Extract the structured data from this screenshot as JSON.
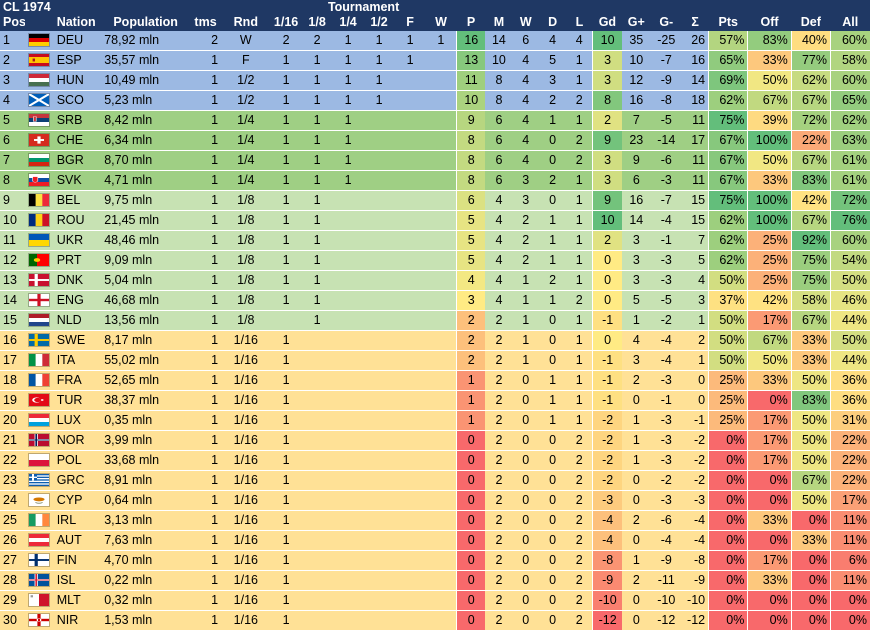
{
  "header": {
    "title": "CL 1974",
    "group_label": "Tournament",
    "columns": [
      "Pos",
      "Nation",
      "Population",
      "tms",
      "Rnd",
      "1/16",
      "1/8",
      "1/4",
      "1/2",
      "F",
      "W",
      "P",
      "M",
      "W",
      "D",
      "L",
      "Gd",
      "G+",
      "G-",
      "Σ",
      "Pts",
      "Off",
      "Def",
      "All"
    ]
  },
  "colors": {
    "header_bg": "#1f3864",
    "tier_blue": "#9cb9e3",
    "tier_green_dark": "#9fcf84",
    "tier_green_light": "#c7e2b3",
    "tier_yellow": "#ffe196",
    "scale_green": "#63be7b",
    "scale_yellow": "#ffeb84",
    "scale_red": "#f8696b"
  },
  "rows": [
    {
      "pos": "1",
      "flag": "de",
      "nation": "DEU",
      "pop": "78,92 mln",
      "tms": "2",
      "rnd": "W",
      "r16": "2",
      "r8": "2",
      "r4": "1",
      "r2": "1",
      "f": "1",
      "w": "1",
      "p": "16",
      "m": "14",
      "wn": "6",
      "d": "4",
      "l": "4",
      "gd": "10",
      "gp": "35",
      "gm": "-25",
      "s": "26",
      "pts": "57%",
      "off": "83%",
      "def": "40%",
      "all": "60%",
      "tier": "blue"
    },
    {
      "pos": "2",
      "flag": "es",
      "nation": "ESP",
      "pop": "35,57 mln",
      "tms": "1",
      "rnd": "F",
      "r16": "1",
      "r8": "1",
      "r4": "1",
      "r2": "1",
      "f": "1",
      "w": "",
      "p": "13",
      "m": "10",
      "wn": "4",
      "d": "5",
      "l": "1",
      "gd": "3",
      "gp": "10",
      "gm": "-7",
      "s": "16",
      "pts": "65%",
      "off": "33%",
      "def": "77%",
      "all": "58%",
      "tier": "blue"
    },
    {
      "pos": "3",
      "flag": "hu",
      "nation": "HUN",
      "pop": "10,49 mln",
      "tms": "1",
      "rnd": "1/2",
      "r16": "1",
      "r8": "1",
      "r4": "1",
      "r2": "1",
      "f": "",
      "w": "",
      "p": "11",
      "m": "8",
      "wn": "4",
      "d": "3",
      "l": "1",
      "gd": "3",
      "gp": "12",
      "gm": "-9",
      "s": "14",
      "pts": "69%",
      "off": "50%",
      "def": "62%",
      "all": "60%",
      "tier": "blue"
    },
    {
      "pos": "4",
      "flag": "sco",
      "nation": "SCO",
      "pop": "5,23 mln",
      "tms": "1",
      "rnd": "1/2",
      "r16": "1",
      "r8": "1",
      "r4": "1",
      "r2": "1",
      "f": "",
      "w": "",
      "p": "10",
      "m": "8",
      "wn": "4",
      "d": "2",
      "l": "2",
      "gd": "8",
      "gp": "16",
      "gm": "-8",
      "s": "18",
      "pts": "62%",
      "off": "67%",
      "def": "67%",
      "all": "65%",
      "tier": "blue"
    },
    {
      "pos": "5",
      "flag": "rs",
      "nation": "SRB",
      "pop": "8,42 mln",
      "tms": "1",
      "rnd": "1/4",
      "r16": "1",
      "r8": "1",
      "r4": "1",
      "r2": "",
      "f": "",
      "w": "",
      "p": "9",
      "m": "6",
      "wn": "4",
      "d": "1",
      "l": "1",
      "gd": "2",
      "gp": "7",
      "gm": "-5",
      "s": "11",
      "pts": "75%",
      "off": "39%",
      "def": "72%",
      "all": "62%",
      "tier": "green_dark"
    },
    {
      "pos": "6",
      "flag": "ch",
      "nation": "CHE",
      "pop": "6,34 mln",
      "tms": "1",
      "rnd": "1/4",
      "r16": "1",
      "r8": "1",
      "r4": "1",
      "r2": "",
      "f": "",
      "w": "",
      "p": "8",
      "m": "6",
      "wn": "4",
      "d": "0",
      "l": "2",
      "gd": "9",
      "gp": "23",
      "gm": "-14",
      "s": "17",
      "pts": "67%",
      "off": "100%",
      "def": "22%",
      "all": "63%",
      "tier": "green_dark"
    },
    {
      "pos": "7",
      "flag": "bg",
      "nation": "BGR",
      "pop": "8,70 mln",
      "tms": "1",
      "rnd": "1/4",
      "r16": "1",
      "r8": "1",
      "r4": "1",
      "r2": "",
      "f": "",
      "w": "",
      "p": "8",
      "m": "6",
      "wn": "4",
      "d": "0",
      "l": "2",
      "gd": "3",
      "gp": "9",
      "gm": "-6",
      "s": "11",
      "pts": "67%",
      "off": "50%",
      "def": "67%",
      "all": "61%",
      "tier": "green_dark"
    },
    {
      "pos": "8",
      "flag": "sk",
      "nation": "SVK",
      "pop": "4,71 mln",
      "tms": "1",
      "rnd": "1/4",
      "r16": "1",
      "r8": "1",
      "r4": "1",
      "r2": "",
      "f": "",
      "w": "",
      "p": "8",
      "m": "6",
      "wn": "3",
      "d": "2",
      "l": "1",
      "gd": "3",
      "gp": "6",
      "gm": "-3",
      "s": "11",
      "pts": "67%",
      "off": "33%",
      "def": "83%",
      "all": "61%",
      "tier": "green_dark"
    },
    {
      "pos": "9",
      "flag": "be",
      "nation": "BEL",
      "pop": "9,75 mln",
      "tms": "1",
      "rnd": "1/8",
      "r16": "1",
      "r8": "1",
      "r4": "",
      "r2": "",
      "f": "",
      "w": "",
      "p": "6",
      "m": "4",
      "wn": "3",
      "d": "0",
      "l": "1",
      "gd": "9",
      "gp": "16",
      "gm": "-7",
      "s": "15",
      "pts": "75%",
      "off": "100%",
      "def": "42%",
      "all": "72%",
      "tier": "green_light"
    },
    {
      "pos": "10",
      "flag": "ro",
      "nation": "ROU",
      "pop": "21,45 mln",
      "tms": "1",
      "rnd": "1/8",
      "r16": "1",
      "r8": "1",
      "r4": "",
      "r2": "",
      "f": "",
      "w": "",
      "p": "5",
      "m": "4",
      "wn": "2",
      "d": "1",
      "l": "1",
      "gd": "10",
      "gp": "14",
      "gm": "-4",
      "s": "15",
      "pts": "62%",
      "off": "100%",
      "def": "67%",
      "all": "76%",
      "tier": "green_light"
    },
    {
      "pos": "11",
      "flag": "ua",
      "nation": "UKR",
      "pop": "48,46 mln",
      "tms": "1",
      "rnd": "1/8",
      "r16": "1",
      "r8": "1",
      "r4": "",
      "r2": "",
      "f": "",
      "w": "",
      "p": "5",
      "m": "4",
      "wn": "2",
      "d": "1",
      "l": "1",
      "gd": "2",
      "gp": "3",
      "gm": "-1",
      "s": "7",
      "pts": "62%",
      "off": "25%",
      "def": "92%",
      "all": "60%",
      "tier": "green_light"
    },
    {
      "pos": "12",
      "flag": "pt",
      "nation": "PRT",
      "pop": "9,09 mln",
      "tms": "1",
      "rnd": "1/8",
      "r16": "1",
      "r8": "1",
      "r4": "",
      "r2": "",
      "f": "",
      "w": "",
      "p": "5",
      "m": "4",
      "wn": "2",
      "d": "1",
      "l": "1",
      "gd": "0",
      "gp": "3",
      "gm": "-3",
      "s": "5",
      "pts": "62%",
      "off": "25%",
      "def": "75%",
      "all": "54%",
      "tier": "green_light"
    },
    {
      "pos": "13",
      "flag": "dk",
      "nation": "DNK",
      "pop": "5,04 mln",
      "tms": "1",
      "rnd": "1/8",
      "r16": "1",
      "r8": "1",
      "r4": "",
      "r2": "",
      "f": "",
      "w": "",
      "p": "4",
      "m": "4",
      "wn": "1",
      "d": "2",
      "l": "1",
      "gd": "0",
      "gp": "3",
      "gm": "-3",
      "s": "4",
      "pts": "50%",
      "off": "25%",
      "def": "75%",
      "all": "50%",
      "tier": "green_light"
    },
    {
      "pos": "14",
      "flag": "eng",
      "nation": "ENG",
      "pop": "46,68 mln",
      "tms": "1",
      "rnd": "1/8",
      "r16": "1",
      "r8": "1",
      "r4": "",
      "r2": "",
      "f": "",
      "w": "",
      "p": "3",
      "m": "4",
      "wn": "1",
      "d": "1",
      "l": "2",
      "gd": "0",
      "gp": "5",
      "gm": "-5",
      "s": "3",
      "pts": "37%",
      "off": "42%",
      "def": "58%",
      "all": "46%",
      "tier": "green_light"
    },
    {
      "pos": "15",
      "flag": "nl",
      "nation": "NLD",
      "pop": "13,56 mln",
      "tms": "1",
      "rnd": "1/8",
      "r16": "",
      "r8": "1",
      "r4": "",
      "r2": "",
      "f": "",
      "w": "",
      "p": "2",
      "m": "2",
      "wn": "1",
      "d": "0",
      "l": "1",
      "gd": "-1",
      "gp": "1",
      "gm": "-2",
      "s": "1",
      "pts": "50%",
      "off": "17%",
      "def": "67%",
      "all": "44%",
      "tier": "green_light"
    },
    {
      "pos": "16",
      "flag": "se",
      "nation": "SWE",
      "pop": "8,17 mln",
      "tms": "1",
      "rnd": "1/16",
      "r16": "1",
      "r8": "",
      "r4": "",
      "r2": "",
      "f": "",
      "w": "",
      "p": "2",
      "m": "2",
      "wn": "1",
      "d": "0",
      "l": "1",
      "gd": "0",
      "gp": "4",
      "gm": "-4",
      "s": "2",
      "pts": "50%",
      "off": "67%",
      "def": "33%",
      "all": "50%",
      "tier": "yellow"
    },
    {
      "pos": "17",
      "flag": "it",
      "nation": "ITA",
      "pop": "55,02 mln",
      "tms": "1",
      "rnd": "1/16",
      "r16": "1",
      "r8": "",
      "r4": "",
      "r2": "",
      "f": "",
      "w": "",
      "p": "2",
      "m": "2",
      "wn": "1",
      "d": "0",
      "l": "1",
      "gd": "-1",
      "gp": "3",
      "gm": "-4",
      "s": "1",
      "pts": "50%",
      "off": "50%",
      "def": "33%",
      "all": "44%",
      "tier": "yellow"
    },
    {
      "pos": "18",
      "flag": "fr",
      "nation": "FRA",
      "pop": "52,65 mln",
      "tms": "1",
      "rnd": "1/16",
      "r16": "1",
      "r8": "",
      "r4": "",
      "r2": "",
      "f": "",
      "w": "",
      "p": "1",
      "m": "2",
      "wn": "0",
      "d": "1",
      "l": "1",
      "gd": "-1",
      "gp": "2",
      "gm": "-3",
      "s": "0",
      "pts": "25%",
      "off": "33%",
      "def": "50%",
      "all": "36%",
      "tier": "yellow"
    },
    {
      "pos": "19",
      "flag": "tr",
      "nation": "TUR",
      "pop": "38,37 mln",
      "tms": "1",
      "rnd": "1/16",
      "r16": "1",
      "r8": "",
      "r4": "",
      "r2": "",
      "f": "",
      "w": "",
      "p": "1",
      "m": "2",
      "wn": "0",
      "d": "1",
      "l": "1",
      "gd": "-1",
      "gp": "0",
      "gm": "-1",
      "s": "0",
      "pts": "25%",
      "off": "0%",
      "def": "83%",
      "all": "36%",
      "tier": "yellow"
    },
    {
      "pos": "20",
      "flag": "lu",
      "nation": "LUX",
      "pop": "0,35 mln",
      "tms": "1",
      "rnd": "1/16",
      "r16": "1",
      "r8": "",
      "r4": "",
      "r2": "",
      "f": "",
      "w": "",
      "p": "1",
      "m": "2",
      "wn": "0",
      "d": "1",
      "l": "1",
      "gd": "-2",
      "gp": "1",
      "gm": "-3",
      "s": "-1",
      "pts": "25%",
      "off": "17%",
      "def": "50%",
      "all": "31%",
      "tier": "yellow"
    },
    {
      "pos": "21",
      "flag": "no",
      "nation": "NOR",
      "pop": "3,99 mln",
      "tms": "1",
      "rnd": "1/16",
      "r16": "1",
      "r8": "",
      "r4": "",
      "r2": "",
      "f": "",
      "w": "",
      "p": "0",
      "m": "2",
      "wn": "0",
      "d": "0",
      "l": "2",
      "gd": "-2",
      "gp": "1",
      "gm": "-3",
      "s": "-2",
      "pts": "0%",
      "off": "17%",
      "def": "50%",
      "all": "22%",
      "tier": "yellow"
    },
    {
      "pos": "22",
      "flag": "pl",
      "nation": "POL",
      "pop": "33,68 mln",
      "tms": "1",
      "rnd": "1/16",
      "r16": "1",
      "r8": "",
      "r4": "",
      "r2": "",
      "f": "",
      "w": "",
      "p": "0",
      "m": "2",
      "wn": "0",
      "d": "0",
      "l": "2",
      "gd": "-2",
      "gp": "1",
      "gm": "-3",
      "s": "-2",
      "pts": "0%",
      "off": "17%",
      "def": "50%",
      "all": "22%",
      "tier": "yellow"
    },
    {
      "pos": "23",
      "flag": "gr",
      "nation": "GRC",
      "pop": "8,91 mln",
      "tms": "1",
      "rnd": "1/16",
      "r16": "1",
      "r8": "",
      "r4": "",
      "r2": "",
      "f": "",
      "w": "",
      "p": "0",
      "m": "2",
      "wn": "0",
      "d": "0",
      "l": "2",
      "gd": "-2",
      "gp": "0",
      "gm": "-2",
      "s": "-2",
      "pts": "0%",
      "off": "0%",
      "def": "67%",
      "all": "22%",
      "tier": "yellow"
    },
    {
      "pos": "24",
      "flag": "cy",
      "nation": "CYP",
      "pop": "0,64 mln",
      "tms": "1",
      "rnd": "1/16",
      "r16": "1",
      "r8": "",
      "r4": "",
      "r2": "",
      "f": "",
      "w": "",
      "p": "0",
      "m": "2",
      "wn": "0",
      "d": "0",
      "l": "2",
      "gd": "-3",
      "gp": "0",
      "gm": "-3",
      "s": "-3",
      "pts": "0%",
      "off": "0%",
      "def": "50%",
      "all": "17%",
      "tier": "yellow"
    },
    {
      "pos": "25",
      "flag": "ie",
      "nation": "IRL",
      "pop": "3,13 mln",
      "tms": "1",
      "rnd": "1/16",
      "r16": "1",
      "r8": "",
      "r4": "",
      "r2": "",
      "f": "",
      "w": "",
      "p": "0",
      "m": "2",
      "wn": "0",
      "d": "0",
      "l": "2",
      "gd": "-4",
      "gp": "2",
      "gm": "-6",
      "s": "-4",
      "pts": "0%",
      "off": "33%",
      "def": "0%",
      "all": "11%",
      "tier": "yellow"
    },
    {
      "pos": "26",
      "flag": "at",
      "nation": "AUT",
      "pop": "7,63 mln",
      "tms": "1",
      "rnd": "1/16",
      "r16": "1",
      "r8": "",
      "r4": "",
      "r2": "",
      "f": "",
      "w": "",
      "p": "0",
      "m": "2",
      "wn": "0",
      "d": "0",
      "l": "2",
      "gd": "-4",
      "gp": "0",
      "gm": "-4",
      "s": "-4",
      "pts": "0%",
      "off": "0%",
      "def": "33%",
      "all": "11%",
      "tier": "yellow"
    },
    {
      "pos": "27",
      "flag": "fi",
      "nation": "FIN",
      "pop": "4,70 mln",
      "tms": "1",
      "rnd": "1/16",
      "r16": "1",
      "r8": "",
      "r4": "",
      "r2": "",
      "f": "",
      "w": "",
      "p": "0",
      "m": "2",
      "wn": "0",
      "d": "0",
      "l": "2",
      "gd": "-8",
      "gp": "1",
      "gm": "-9",
      "s": "-8",
      "pts": "0%",
      "off": "17%",
      "def": "0%",
      "all": "6%",
      "tier": "yellow"
    },
    {
      "pos": "28",
      "flag": "is",
      "nation": "ISL",
      "pop": "0,22 mln",
      "tms": "1",
      "rnd": "1/16",
      "r16": "1",
      "r8": "",
      "r4": "",
      "r2": "",
      "f": "",
      "w": "",
      "p": "0",
      "m": "2",
      "wn": "0",
      "d": "0",
      "l": "2",
      "gd": "-9",
      "gp": "2",
      "gm": "-11",
      "s": "-9",
      "pts": "0%",
      "off": "33%",
      "def": "0%",
      "all": "11%",
      "tier": "yellow"
    },
    {
      "pos": "29",
      "flag": "mt",
      "nation": "MLT",
      "pop": "0,32 mln",
      "tms": "1",
      "rnd": "1/16",
      "r16": "1",
      "r8": "",
      "r4": "",
      "r2": "",
      "f": "",
      "w": "",
      "p": "0",
      "m": "2",
      "wn": "0",
      "d": "0",
      "l": "2",
      "gd": "-10",
      "gp": "0",
      "gm": "-10",
      "s": "-10",
      "pts": "0%",
      "off": "0%",
      "def": "0%",
      "all": "0%",
      "tier": "yellow"
    },
    {
      "pos": "30",
      "flag": "nir",
      "nation": "NIR",
      "pop": "1,53 mln",
      "tms": "1",
      "rnd": "1/16",
      "r16": "1",
      "r8": "",
      "r4": "",
      "r2": "",
      "f": "",
      "w": "",
      "p": "0",
      "m": "2",
      "wn": "0",
      "d": "0",
      "l": "2",
      "gd": "-12",
      "gp": "0",
      "gm": "-12",
      "s": "-12",
      "pts": "0%",
      "off": "0%",
      "def": "0%",
      "all": "0%",
      "tier": "yellow"
    }
  ]
}
